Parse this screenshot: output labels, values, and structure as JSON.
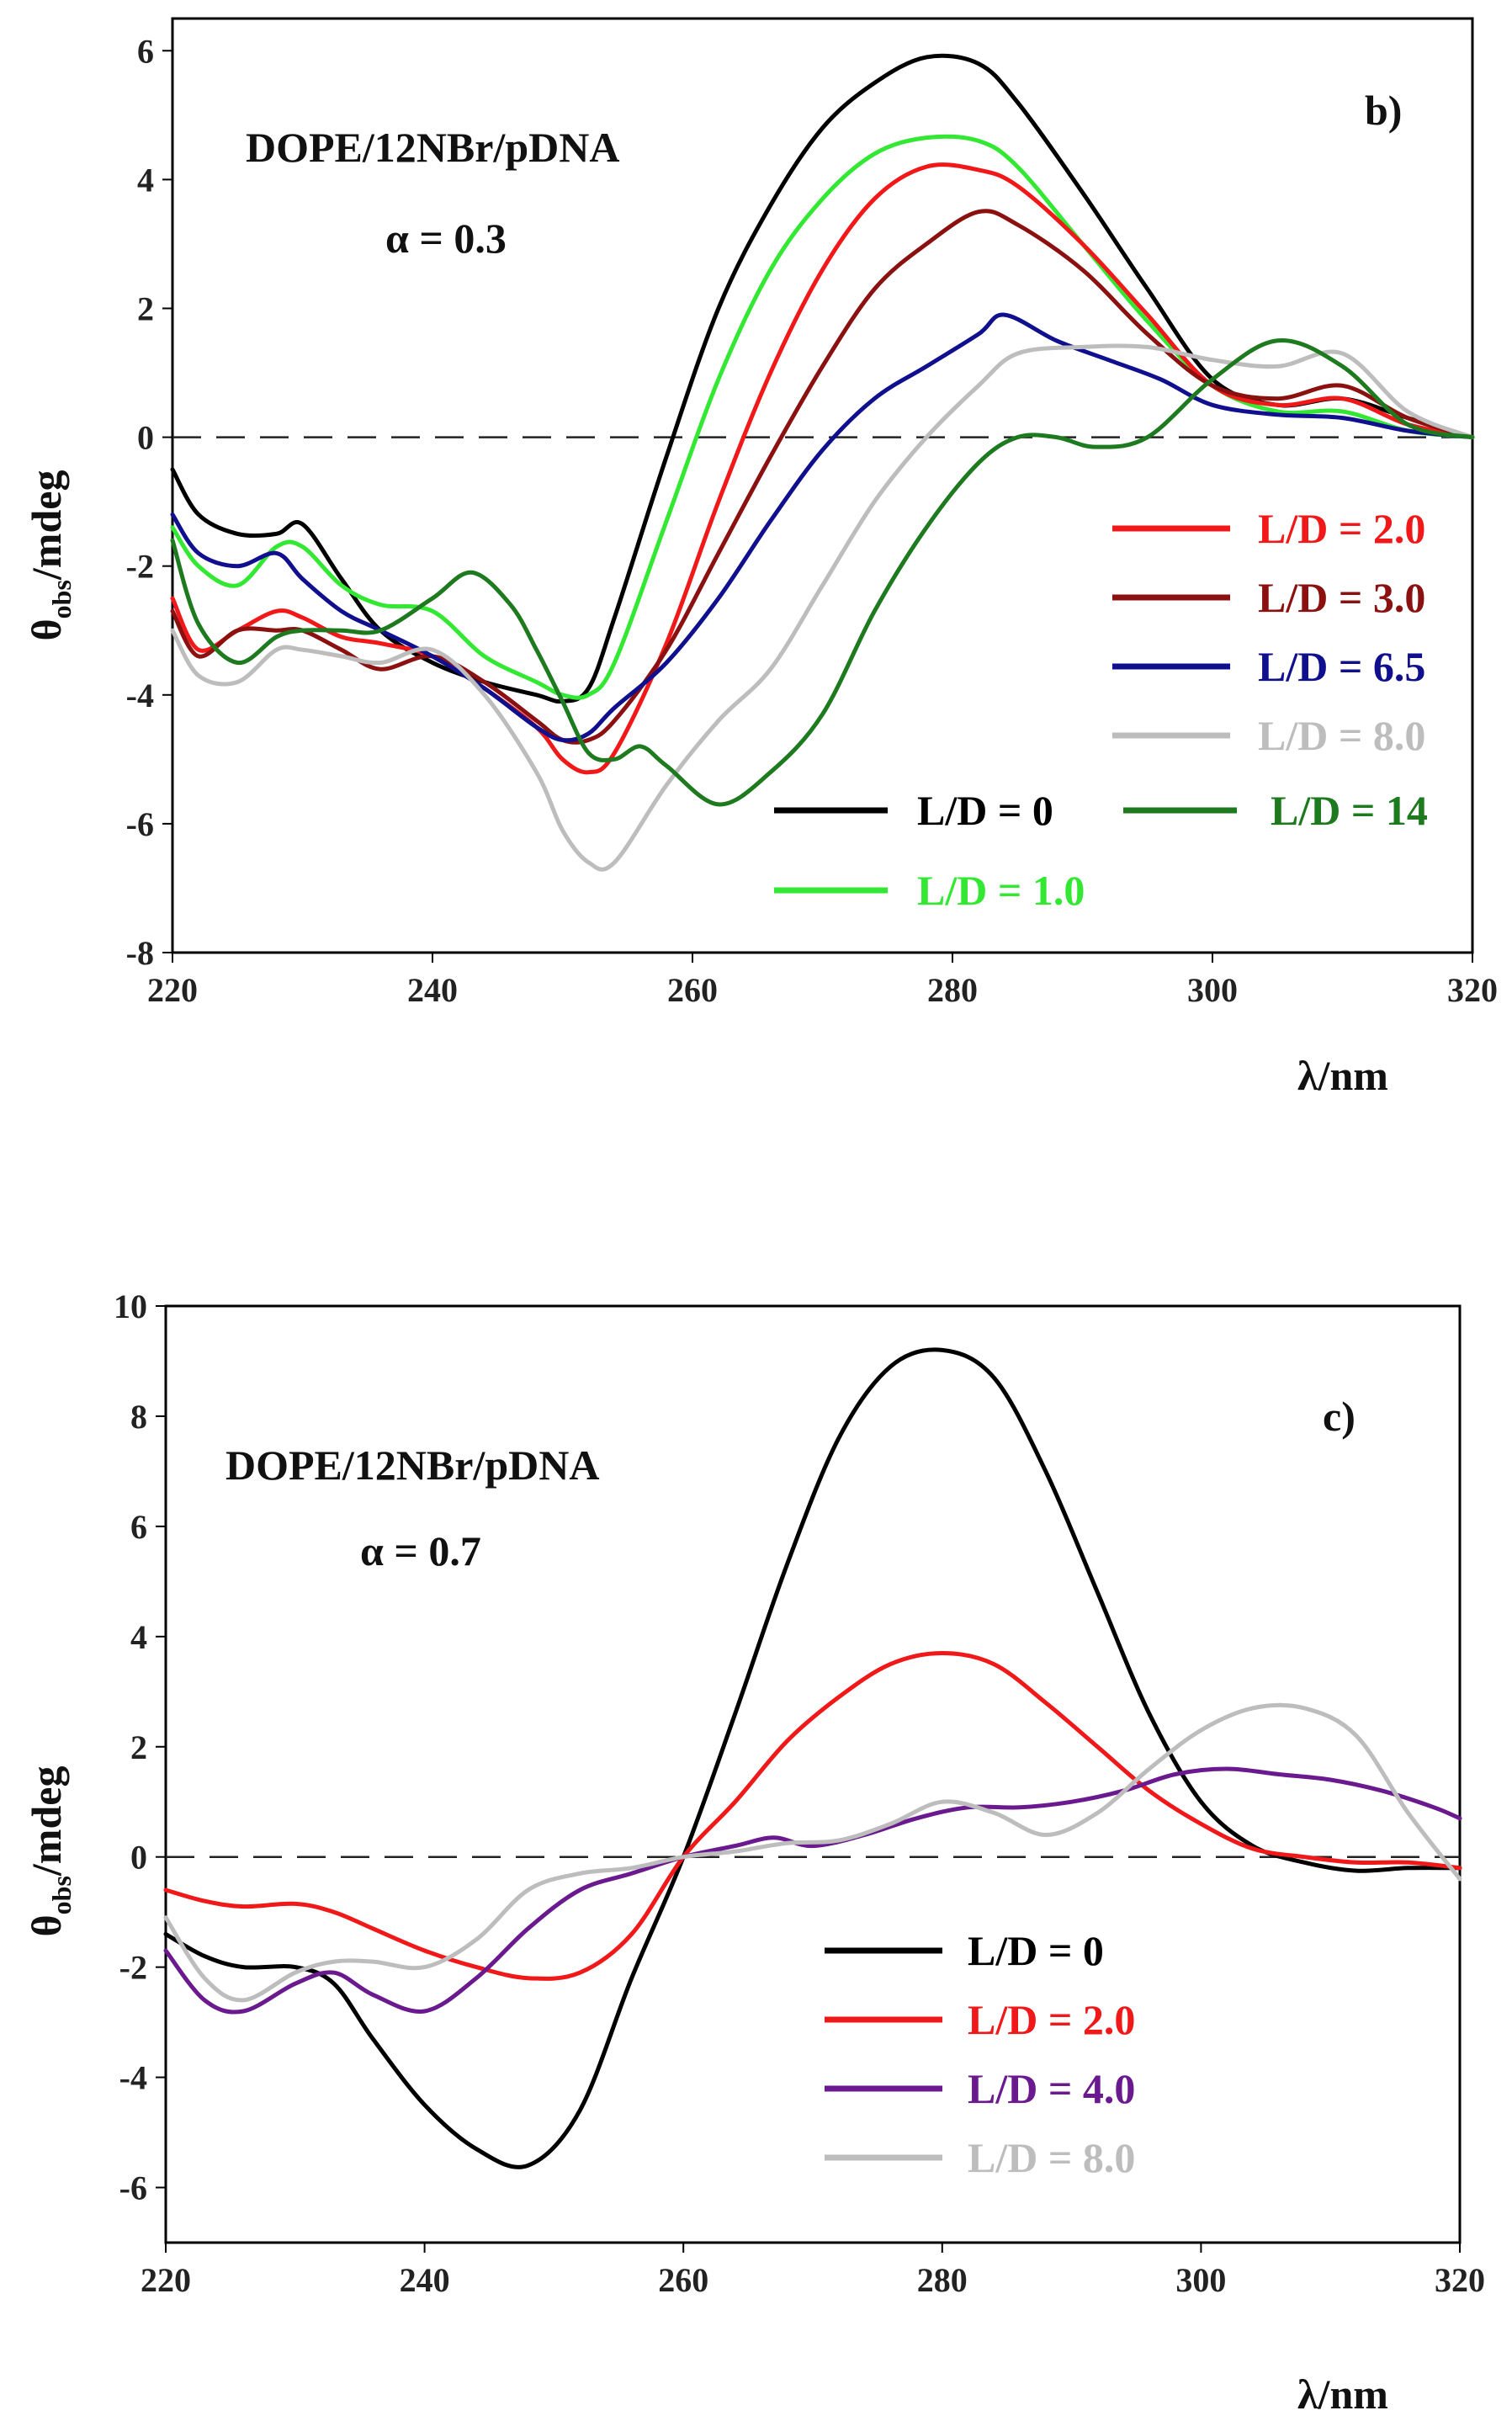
{
  "figure": {
    "panels": [
      {
        "panel_label": "b)",
        "annotation_lines": [
          "DOPE/12NBr/pDNA",
          "α = 0.3"
        ],
        "xlabel": "λ/nm",
        "ylabel": {
          "main": "θ",
          "sub": "obs",
          "rest": "/mdeg"
        }
      },
      {
        "panel_label": "c)",
        "annotation_lines": [
          "DOPE/12NBr/pDNA",
          "α = 0.7"
        ],
        "xlabel": "λ/nm",
        "ylabel": {
          "main": "θ",
          "sub": "obs",
          "rest": "/mdeg"
        }
      }
    ]
  },
  "chart_data": [
    {
      "type": "line",
      "panel_label": "b)",
      "xlabel": "λ/nm",
      "ylabel": "θobs/mdeg",
      "xlim": [
        220,
        320
      ],
      "ylim": [
        -8,
        6.5
      ],
      "x_ticks": [
        220,
        240,
        260,
        280,
        300,
        320
      ],
      "y_ticks": [
        -8,
        -6,
        -4,
        -2,
        0,
        2,
        4,
        6
      ],
      "zero_line": "dashed",
      "grid": false,
      "legend_entries": [
        "L/D = 0",
        "L/D = 1.0",
        "L/D = 2.0",
        "L/D = 3.0",
        "L/D = 6.5",
        "L/D = 8.0",
        "L/D = 14"
      ],
      "series": [
        {
          "name": "L/D = 0",
          "color": "#000000",
          "x": [
            220,
            222,
            225,
            228,
            230,
            233,
            236,
            240,
            244,
            248,
            250,
            252,
            254,
            258,
            262,
            266,
            270,
            274,
            278,
            282,
            285,
            290,
            295,
            300,
            305,
            310,
            315,
            320
          ],
          "y": [
            -0.5,
            -1.2,
            -1.5,
            -1.5,
            -1.35,
            -2.2,
            -3.0,
            -3.5,
            -3.8,
            -4.0,
            -4.1,
            -3.9,
            -2.8,
            -0.3,
            2.0,
            3.6,
            4.8,
            5.5,
            5.9,
            5.8,
            5.2,
            3.8,
            2.3,
            0.9,
            0.5,
            0.6,
            0.3,
            0.0
          ]
        },
        {
          "name": "L/D = 1.0",
          "color": "#33e833",
          "x": [
            220,
            222,
            225,
            228,
            230,
            233,
            236,
            240,
            244,
            248,
            250,
            252,
            254,
            258,
            262,
            266,
            270,
            274,
            278,
            282,
            285,
            290,
            295,
            300,
            305,
            310,
            315,
            320
          ],
          "y": [
            -1.4,
            -2.0,
            -2.3,
            -1.7,
            -1.7,
            -2.3,
            -2.6,
            -2.7,
            -3.4,
            -3.8,
            -4.0,
            -4.0,
            -3.5,
            -1.3,
            0.9,
            2.6,
            3.7,
            4.4,
            4.65,
            4.6,
            4.2,
            3.0,
            1.8,
            0.8,
            0.4,
            0.4,
            0.1,
            0.0
          ]
        },
        {
          "name": "L/D = 2.0",
          "color": "#f01818",
          "x": [
            220,
            222,
            225,
            228,
            230,
            233,
            236,
            240,
            244,
            248,
            250,
            252,
            254,
            258,
            262,
            266,
            270,
            274,
            278,
            282,
            285,
            290,
            295,
            300,
            305,
            310,
            315,
            320
          ],
          "y": [
            -2.5,
            -3.3,
            -3.0,
            -2.7,
            -2.8,
            -3.1,
            -3.2,
            -3.4,
            -3.9,
            -4.5,
            -5.0,
            -5.2,
            -4.9,
            -3.2,
            -1.0,
            1.0,
            2.6,
            3.7,
            4.2,
            4.15,
            3.9,
            3.0,
            1.9,
            0.8,
            0.5,
            0.6,
            0.2,
            0.0
          ]
        },
        {
          "name": "L/D = 3.0",
          "color": "#8b1010",
          "x": [
            220,
            222,
            225,
            228,
            230,
            233,
            236,
            240,
            244,
            248,
            250,
            252,
            254,
            258,
            262,
            266,
            270,
            274,
            278,
            282,
            285,
            290,
            295,
            300,
            305,
            310,
            315,
            320
          ],
          "y": [
            -2.7,
            -3.4,
            -3.0,
            -3.0,
            -3.0,
            -3.3,
            -3.6,
            -3.4,
            -3.8,
            -4.4,
            -4.7,
            -4.7,
            -4.4,
            -3.3,
            -1.8,
            -0.3,
            1.1,
            2.3,
            3.0,
            3.5,
            3.3,
            2.6,
            1.6,
            0.8,
            0.6,
            0.8,
            0.3,
            0.0
          ]
        },
        {
          "name": "L/D = 6.5",
          "color": "#10108f",
          "x": [
            220,
            222,
            225,
            228,
            230,
            233,
            236,
            240,
            244,
            248,
            250,
            252,
            254,
            258,
            262,
            266,
            270,
            274,
            278,
            282,
            284,
            288,
            292,
            296,
            300,
            305,
            310,
            315,
            320
          ],
          "y": [
            -1.2,
            -1.8,
            -2.0,
            -1.8,
            -2.2,
            -2.7,
            -3.0,
            -3.4,
            -3.9,
            -4.5,
            -4.7,
            -4.6,
            -4.2,
            -3.5,
            -2.5,
            -1.3,
            -0.2,
            0.6,
            1.1,
            1.6,
            1.9,
            1.5,
            1.2,
            0.9,
            0.5,
            0.35,
            0.3,
            0.1,
            0.0
          ]
        },
        {
          "name": "L/D = 8.0",
          "color": "#bdbdbd",
          "x": [
            220,
            222,
            225,
            228,
            230,
            233,
            236,
            240,
            244,
            248,
            250,
            252,
            254,
            258,
            262,
            266,
            270,
            274,
            278,
            282,
            285,
            290,
            295,
            300,
            305,
            310,
            315,
            320
          ],
          "y": [
            -3.0,
            -3.7,
            -3.8,
            -3.3,
            -3.3,
            -3.4,
            -3.5,
            -3.3,
            -4.0,
            -5.2,
            -6.1,
            -6.6,
            -6.6,
            -5.4,
            -4.4,
            -3.6,
            -2.3,
            -1.0,
            0.0,
            0.8,
            1.3,
            1.4,
            1.4,
            1.2,
            1.1,
            1.3,
            0.4,
            0.0
          ]
        },
        {
          "name": "L/D = 14",
          "color": "#1e7a1e",
          "x": [
            220,
            222,
            225,
            228,
            230,
            233,
            236,
            240,
            243,
            246,
            248,
            250,
            252,
            254,
            256,
            258,
            262,
            266,
            270,
            274,
            278,
            282,
            285,
            288,
            291,
            295,
            300,
            305,
            310,
            315,
            320
          ],
          "y": [
            -1.6,
            -2.9,
            -3.5,
            -3.1,
            -3.0,
            -3.0,
            -3.0,
            -2.5,
            -2.1,
            -2.6,
            -3.3,
            -4.1,
            -4.9,
            -5.0,
            -4.8,
            -5.1,
            -5.7,
            -5.2,
            -4.3,
            -2.7,
            -1.4,
            -0.4,
            0.0,
            0.0,
            -0.15,
            0.0,
            0.9,
            1.5,
            1.1,
            0.2,
            0.0
          ]
        }
      ]
    },
    {
      "type": "line",
      "panel_label": "c)",
      "xlabel": "λ/nm",
      "ylabel": "θobs/mdeg",
      "xlim": [
        220,
        320
      ],
      "ylim": [
        -7,
        10
      ],
      "x_ticks": [
        220,
        240,
        260,
        280,
        300,
        320
      ],
      "y_ticks": [
        -6,
        -4,
        -2,
        0,
        2,
        4,
        6,
        8,
        10
      ],
      "zero_line": "dashed",
      "grid": false,
      "legend_entries": [
        "L/D = 0",
        "L/D = 2.0",
        "L/D = 4.0",
        "L/D = 8.0"
      ],
      "series": [
        {
          "name": "L/D = 0",
          "color": "#000000",
          "x": [
            220,
            223,
            226,
            230,
            233,
            236,
            240,
            244,
            248,
            252,
            256,
            260,
            264,
            268,
            272,
            276,
            280,
            284,
            288,
            292,
            296,
            300,
            304,
            308,
            312,
            316,
            320
          ],
          "y": [
            -1.4,
            -1.8,
            -2.0,
            -2.0,
            -2.3,
            -3.3,
            -4.5,
            -5.3,
            -5.6,
            -4.6,
            -2.2,
            0.0,
            2.6,
            5.3,
            7.6,
            8.9,
            9.2,
            8.7,
            7.0,
            4.8,
            2.6,
            1.0,
            0.2,
            -0.1,
            -0.25,
            -0.2,
            -0.2
          ]
        },
        {
          "name": "L/D = 2.0",
          "color": "#f01818",
          "x": [
            220,
            223,
            226,
            230,
            233,
            236,
            240,
            244,
            248,
            252,
            256,
            260,
            264,
            268,
            272,
            276,
            280,
            284,
            288,
            292,
            296,
            300,
            304,
            308,
            312,
            316,
            320
          ],
          "y": [
            -0.6,
            -0.8,
            -0.9,
            -0.85,
            -1.0,
            -1.3,
            -1.7,
            -2.0,
            -2.2,
            -2.1,
            -1.4,
            0.0,
            1.0,
            2.1,
            2.9,
            3.5,
            3.7,
            3.5,
            2.8,
            2.0,
            1.2,
            0.6,
            0.15,
            0.0,
            -0.1,
            -0.1,
            -0.2
          ]
        },
        {
          "name": "L/D = 4.0",
          "color": "#6a1a8e",
          "x": [
            220,
            223,
            226,
            230,
            233,
            236,
            240,
            244,
            248,
            252,
            256,
            260,
            264,
            267,
            270,
            274,
            278,
            282,
            286,
            290,
            294,
            298,
            302,
            306,
            310,
            314,
            318,
            320
          ],
          "y": [
            -1.7,
            -2.6,
            -2.8,
            -2.3,
            -2.1,
            -2.5,
            -2.8,
            -2.2,
            -1.3,
            -0.6,
            -0.3,
            0.0,
            0.2,
            0.35,
            0.2,
            0.4,
            0.7,
            0.9,
            0.9,
            1.0,
            1.2,
            1.5,
            1.6,
            1.5,
            1.4,
            1.2,
            0.9,
            0.7
          ]
        },
        {
          "name": "L/D = 8.0",
          "color": "#bdbdbd",
          "x": [
            220,
            223,
            226,
            230,
            233,
            236,
            240,
            244,
            248,
            252,
            256,
            260,
            264,
            268,
            272,
            276,
            280,
            284,
            288,
            292,
            296,
            300,
            304,
            308,
            312,
            316,
            320
          ],
          "y": [
            -1.1,
            -2.2,
            -2.6,
            -2.1,
            -1.9,
            -1.9,
            -2.0,
            -1.5,
            -0.6,
            -0.3,
            -0.2,
            0.0,
            0.1,
            0.25,
            0.3,
            0.6,
            1.0,
            0.8,
            0.4,
            0.8,
            1.6,
            2.3,
            2.7,
            2.7,
            2.2,
            0.8,
            -0.4
          ]
        }
      ]
    }
  ]
}
